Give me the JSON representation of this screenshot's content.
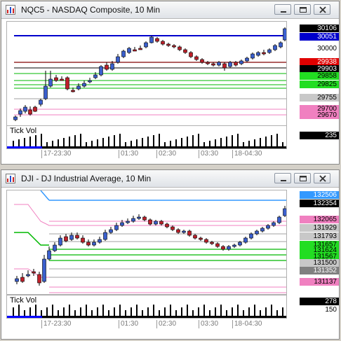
{
  "colors": {
    "up_candle": "#3a5fcd",
    "down_candle": "#c0202a",
    "blue_line": "#0000cc",
    "dark_red_line": "#800000",
    "green_line": "#00b800",
    "pink_line": "#f080c0",
    "gray_line": "#a0a0a0",
    "volume_bar": "#000000",
    "volume_blue": "#0000ff"
  },
  "windows": [
    {
      "title": "NQC5 - NASDAQ Composite, 10 Min",
      "icon": "chart-window-icon",
      "buttons": {
        "minimize": "minimize-icon",
        "restore": "restore-icon",
        "close": "close-icon"
      },
      "volume_title": "Tick Vol",
      "volume_value": "235",
      "time_labels": [
        "17-23:30",
        "01:30",
        "02:30",
        "03:30",
        "18-04:30"
      ],
      "price_labels": [
        {
          "text": "30106",
          "bg": "#000000",
          "fg": "#ffffff"
        },
        {
          "text": "30051",
          "bg": "#0000cc",
          "fg": "#ffffff"
        },
        {
          "text": "30000",
          "bg": "",
          "fg": "#000000"
        },
        {
          "text": "29938",
          "bg": "#e00000",
          "fg": "#ffffff"
        },
        {
          "text": "29903",
          "bg": "#000000",
          "fg": "#ffffff"
        },
        {
          "text": "29858",
          "bg": "#22dd22",
          "fg": "#000000"
        },
        {
          "text": "29825",
          "bg": "#22dd22",
          "fg": "#000000"
        },
        {
          "text": "29755",
          "bg": "#c8c8c8",
          "fg": "#000000"
        },
        {
          "text": "29700",
          "bg": "#f080c0",
          "fg": "#000000"
        },
        {
          "text": "29670",
          "bg": "#f080c0",
          "fg": "#000000"
        }
      ]
    },
    {
      "title": "DJI - DJ Industrial Average, 10 Min",
      "icon": "chart-window-icon",
      "buttons": {
        "minimize": "minimize-icon",
        "restore": "restore-icon",
        "close": "close-icon"
      },
      "volume_title": "Tick Vol",
      "volume_value": "278",
      "volume_value2": "150",
      "time_labels": [
        "17-23:30",
        "01:30",
        "02:30",
        "03:30",
        "18-04:30"
      ],
      "price_labels": [
        {
          "text": "132506",
          "bg": "#3399ff",
          "fg": "#ffffff"
        },
        {
          "text": "132354",
          "bg": "#000000",
          "fg": "#ffffff"
        },
        {
          "text": "132065",
          "bg": "#f080c0",
          "fg": "#000000"
        },
        {
          "text": "131929",
          "bg": "#c8c8c8",
          "fg": "#000000"
        },
        {
          "text": "131793",
          "bg": "#c8c8c8",
          "fg": "#000000"
        },
        {
          "text": "131657",
          "bg": "#22dd22",
          "fg": "#000000"
        },
        {
          "text": "131624",
          "bg": "#22dd22",
          "fg": "#000000"
        },
        {
          "text": "131567",
          "bg": "#22dd22",
          "fg": "#000000"
        },
        {
          "text": "131500",
          "bg": "#c8c8c8",
          "fg": "#000000"
        },
        {
          "text": "131352",
          "bg": "#808080",
          "fg": "#ffffff"
        },
        {
          "text": "131137",
          "bg": "#f080c0",
          "fg": "#000000"
        }
      ]
    }
  ]
}
